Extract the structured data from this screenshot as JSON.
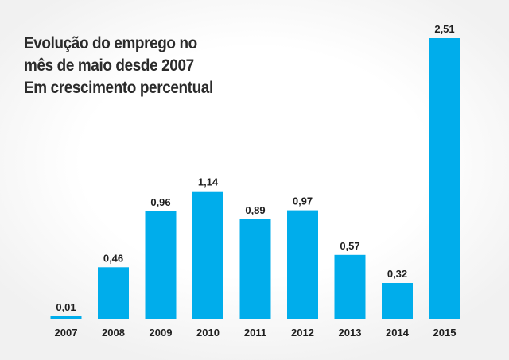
{
  "chart_data": {
    "type": "bar",
    "title_lines": [
      "Evolução do emprego no",
      "mês de maio desde 2007",
      "Em crescimento percentual"
    ],
    "categories": [
      "2007",
      "2008",
      "2009",
      "2010",
      "2011",
      "2012",
      "2013",
      "2014",
      "2015"
    ],
    "values": [
      0.01,
      0.46,
      0.96,
      1.14,
      0.89,
      0.97,
      0.57,
      0.32,
      2.51
    ],
    "value_labels": [
      "0,01",
      "0,46",
      "0,96",
      "1,14",
      "0,89",
      "0,97",
      "0,57",
      "0,32",
      "2,51"
    ],
    "xlabel": "",
    "ylabel": "",
    "ylim": [
      0,
      2.51
    ],
    "grid": false,
    "legend": "none",
    "colors": {
      "bar": "#00adeb",
      "axis": "#cfcfcf",
      "text": "#1f1f1f",
      "title": "#2b2b2b"
    }
  }
}
